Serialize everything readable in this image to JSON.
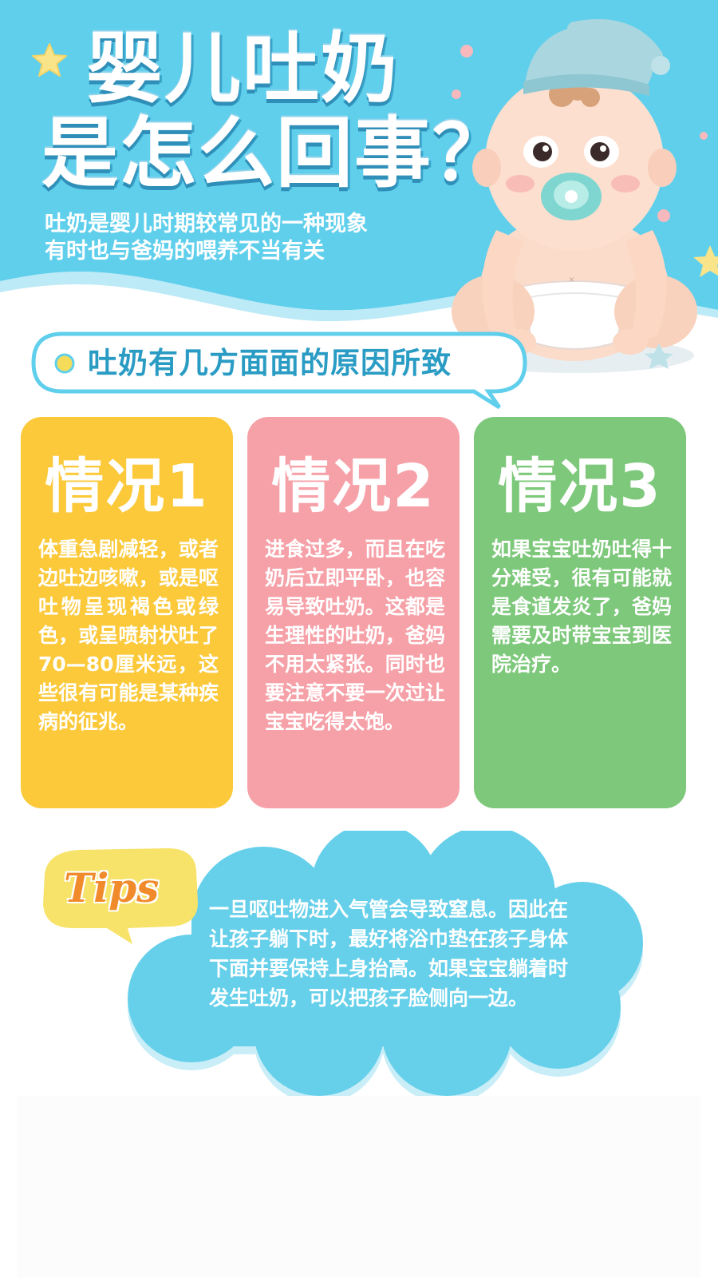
{
  "header": {
    "title_line1": "婴儿吐奶",
    "title_line2": "是怎么回事？",
    "subtitle_line1": "吐奶是婴儿时期较常见的一种现象",
    "subtitle_line2": "有时也与爸妈的喂养不当有关"
  },
  "reason_heading": "吐奶有几方面面的原因所致",
  "cards": [
    {
      "title": "情况1",
      "body": "体重急剧减轻，或者边吐边咳嗽，或是呕吐物呈现褐色或绿色，或呈喷射状吐了70—80厘米远，这些很有可能是某种疾病的征兆。"
    },
    {
      "title": "情况2",
      "body": "进食过多，而且在吃奶后立即平卧，也容易导致吐奶。这都是生理性的吐奶，爸妈不用太紧张。同时也要注意不要一次过让宝宝吃得太饱。"
    },
    {
      "title": "情况3",
      "body": "如果宝宝吐奶吐得十分难受，很有可能就是食道发炎了，爸妈需要及时带宝宝到医院治疗。"
    }
  ],
  "tips": {
    "label": "Tips",
    "text": "一旦呕吐物进入气管会导致窒息。因此在让孩子躺下时，最好将浴巾垫在孩子身体下面并要保持上身抬高。如果宝宝躺着时发生吐奶，可以把孩子脸侧向一边。"
  },
  "colors": {
    "sky_blue": "#5fcfec",
    "card1": "#fbc93a",
    "card2": "#f6a1a8",
    "card3": "#7dc87a",
    "tips_orange": "#f08a2a",
    "tips_bubble": "#f7e36a"
  },
  "icons": {
    "star": "star-icon",
    "dot": "bullet-dot-icon"
  }
}
